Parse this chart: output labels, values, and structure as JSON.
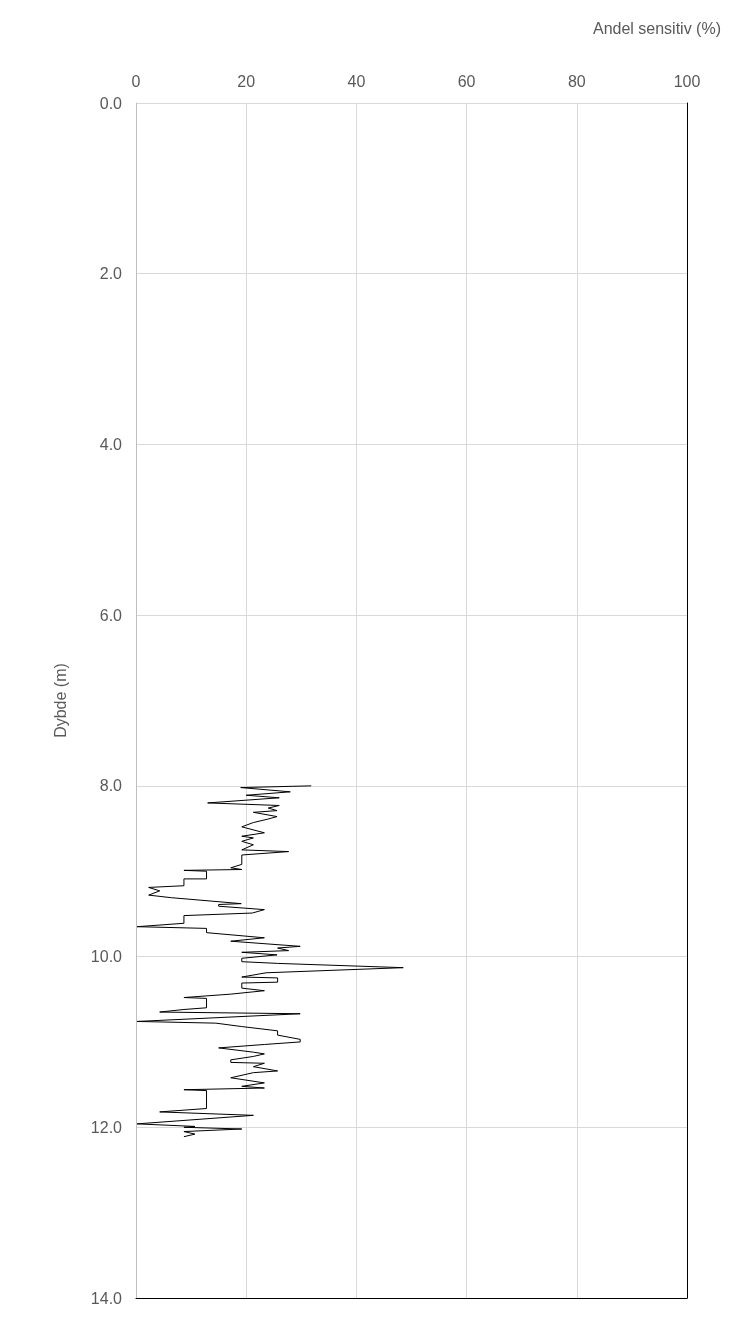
{
  "chart_data": {
    "type": "line",
    "xlabel": "Andel sensitiv (%)",
    "ylabel": "Dybde (m)",
    "xlim": [
      0,
      100
    ],
    "xticks": [
      0,
      20,
      40,
      60,
      80,
      100
    ],
    "ylim": [
      14,
      0
    ],
    "yticks": [
      {
        "value": 0,
        "label": "0.0"
      },
      {
        "value": 2,
        "label": "2.0"
      },
      {
        "value": 4,
        "label": "4.0"
      },
      {
        "value": 6,
        "label": "6.0"
      },
      {
        "value": 8,
        "label": "8.0"
      },
      {
        "value": 10,
        "label": "10.0"
      },
      {
        "value": 12,
        "label": "12.0"
      },
      {
        "value": 14,
        "label": "14.0"
      }
    ],
    "grid": true,
    "marker": "none",
    "line_style": "solid",
    "series": [
      {
        "color": "#000000",
        "x": [
          31.8,
          19,
          28,
          20,
          26,
          13,
          26,
          24,
          25.6,
          21.3,
          25.6,
          23.9,
          21.3,
          19.2,
          23.3,
          19.2,
          21.3,
          19.2,
          21.3,
          19.2,
          27.7,
          19.2,
          19.2,
          17.2,
          19.2,
          8.7,
          12.8,
          12.8,
          8.7,
          8.7,
          2.3,
          4.3,
          2.3,
          6.4,
          19.1,
          15.0,
          15.0,
          23.3,
          21.1,
          8.7,
          8.7,
          0.2,
          12.8,
          12.8,
          23.3,
          17.2,
          29.8,
          25.7,
          27.7,
          19.2,
          25.6,
          19.2,
          19.2,
          25.7,
          48.5,
          23.6,
          19.2,
          25.7,
          25.7,
          19.2,
          19.2,
          23.3,
          17.2,
          8.7,
          12.8,
          12.8,
          8.7,
          4.3,
          29.8,
          0.2,
          14.5,
          19.2,
          25.7,
          25.7,
          29.8,
          29.8,
          23.3,
          15.0,
          21.3,
          23.3,
          21.3,
          17.2,
          17.2,
          23.3,
          21.3,
          25.7,
          21.3,
          17.2,
          23.3,
          19.2,
          23.3,
          8.7,
          12.8,
          12.8,
          4.3,
          21.3,
          0.2,
          10.7,
          8.7,
          19.2,
          8.7,
          10.7,
          8.7
        ],
        "values": [
          8.0,
          8.02,
          8.07,
          8.11,
          8.14,
          8.2,
          8.23,
          8.26,
          8.29,
          8.31,
          8.36,
          8.39,
          8.43,
          8.48,
          8.55,
          8.59,
          8.61,
          8.65,
          8.69,
          8.75,
          8.77,
          8.81,
          8.92,
          8.96,
          8.98,
          8.99,
          9.0,
          9.09,
          9.09,
          9.17,
          9.19,
          9.23,
          9.28,
          9.31,
          9.38,
          9.39,
          9.41,
          9.45,
          9.49,
          9.52,
          9.61,
          9.65,
          9.67,
          9.72,
          9.78,
          9.82,
          9.88,
          9.9,
          9.93,
          9.95,
          9.98,
          10.02,
          10.06,
          10.08,
          10.13,
          10.19,
          10.24,
          10.25,
          10.3,
          10.31,
          10.37,
          10.4,
          10.44,
          10.48,
          10.49,
          10.6,
          10.62,
          10.65,
          10.67,
          10.76,
          10.78,
          10.82,
          10.87,
          10.92,
          10.97,
          11.0,
          11.03,
          11.07,
          11.12,
          11.14,
          11.17,
          11.21,
          11.24,
          11.25,
          11.29,
          11.34,
          11.36,
          11.42,
          11.48,
          11.52,
          11.54,
          11.56,
          11.57,
          11.78,
          11.82,
          11.86,
          11.96,
          11.99,
          12.0,
          12.02,
          12.05,
          12.08,
          12.11
        ]
      }
    ]
  }
}
